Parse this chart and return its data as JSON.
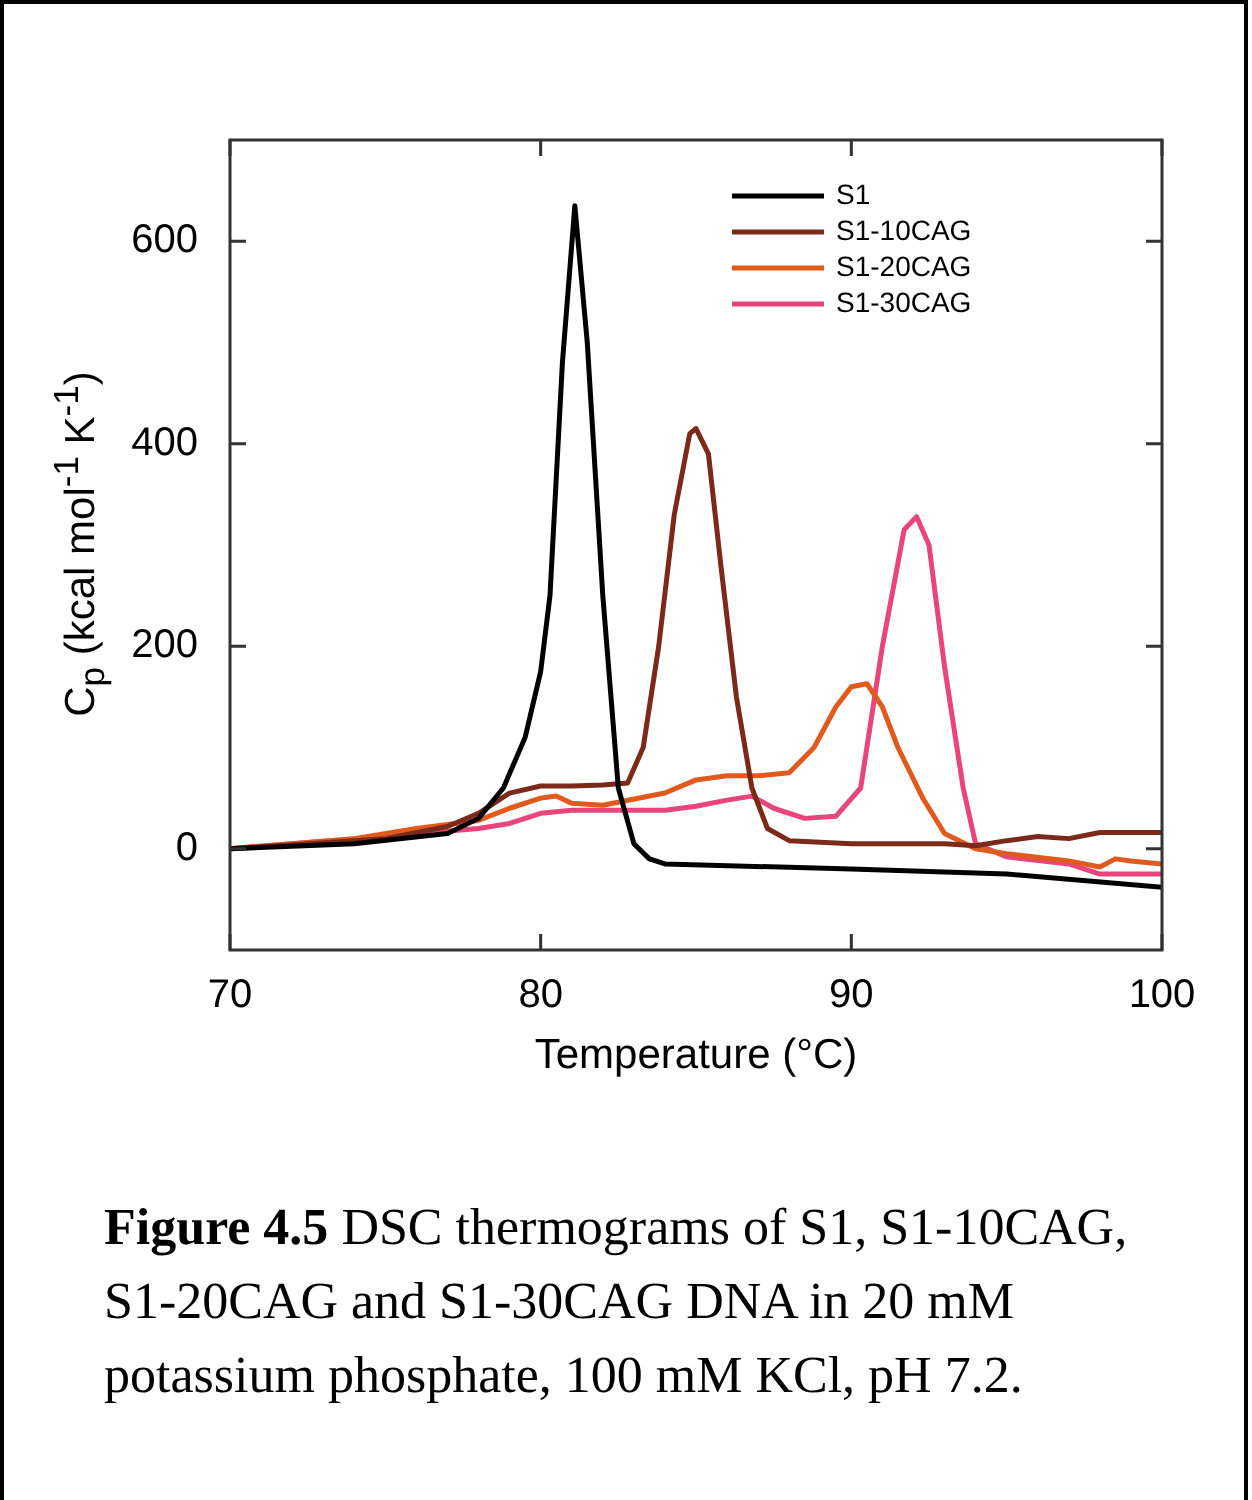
{
  "chart_data": {
    "type": "line",
    "xlabel": "Temperature (°C)",
    "ylabel": "C$_{p}$ (kcal mol$^{-1}$ K$^{-1}$)",
    "xlim": [
      70,
      100
    ],
    "xticks": [
      70,
      80,
      90,
      100
    ],
    "ylim": [
      -100,
      700
    ],
    "yticks": [
      0,
      200,
      400,
      600
    ],
    "grid": false,
    "legend": "top right",
    "marker": "none",
    "line_style": "solid",
    "annotations": [
      "Figure 4.5",
      "DSC thermograms of S1, S1-10CAG, S1-20CAG and S1-30CAG DNA in 20 mM potassium phosphate, 100 mM KCl, pH 7.2."
    ],
    "series": [
      {
        "name": "S1",
        "color": "#000000",
        "x": [
          70,
          74,
          77,
          78,
          78.8,
          79.5,
          80,
          80.3,
          80.7,
          81.1,
          81.5,
          82,
          82.5,
          83,
          83.5,
          84,
          90,
          95,
          100
        ],
        "values": [
          0,
          5,
          15,
          30,
          60,
          110,
          175,
          250,
          480,
          635,
          500,
          250,
          60,
          5,
          -10,
          -15,
          -20,
          -25,
          -38
        ]
      },
      {
        "name": "S1-10CAG",
        "color": "#7b2a1a",
        "x": [
          70,
          75,
          77,
          78,
          79,
          80,
          81,
          82,
          82.8,
          83.3,
          83.8,
          84.3,
          84.8,
          85,
          85.4,
          85.8,
          86.3,
          86.8,
          87.3,
          88,
          90,
          93,
          94,
          95,
          96,
          97,
          98,
          100
        ],
        "values": [
          0,
          10,
          22,
          35,
          55,
          62,
          62,
          63,
          65,
          100,
          200,
          330,
          410,
          415,
          390,
          280,
          150,
          60,
          20,
          8,
          5,
          5,
          3,
          8,
          12,
          10,
          16,
          16
        ]
      },
      {
        "name": "S1-20CAG",
        "color": "#e05a1e",
        "x": [
          70,
          74,
          76,
          78,
          79,
          80,
          80.5,
          81,
          82,
          84,
          85,
          86,
          87,
          88,
          88.8,
          89.5,
          90,
          90.5,
          91,
          91.5,
          92.3,
          93,
          94,
          95,
          97,
          98,
          98.5,
          99,
          100
        ],
        "values": [
          0,
          10,
          20,
          28,
          40,
          50,
          52,
          45,
          43,
          55,
          68,
          72,
          72,
          75,
          100,
          140,
          160,
          163,
          140,
          100,
          50,
          15,
          0,
          -5,
          -12,
          -18,
          -10,
          -12,
          -15
        ]
      },
      {
        "name": "S1-30CAG",
        "color": "#e8457a",
        "x": [
          70,
          72,
          75,
          78,
          79,
          80,
          81,
          82,
          84,
          85,
          86,
          86.8,
          87.5,
          88.5,
          89.5,
          90.3,
          91,
          91.7,
          92.1,
          92.5,
          93,
          93.6,
          94,
          95,
          97,
          98,
          100
        ],
        "values": [
          0,
          5,
          12,
          20,
          25,
          35,
          38,
          38,
          38,
          42,
          48,
          52,
          40,
          30,
          32,
          60,
          200,
          315,
          328,
          300,
          180,
          60,
          5,
          -8,
          -15,
          -25,
          -25
        ]
      }
    ]
  }
}
